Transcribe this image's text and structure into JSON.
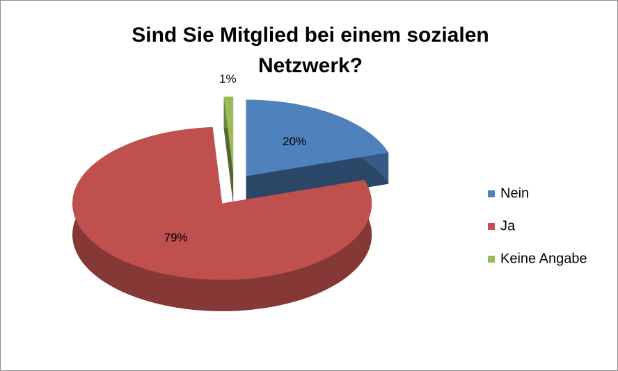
{
  "chart_data": {
    "type": "pie",
    "title": "Sind Sie Mitglied bei einem sozialen Netzwerk?",
    "categories": [
      "Nein",
      "Ja",
      "Keine Angabe"
    ],
    "values": [
      20,
      79,
      1
    ],
    "value_labels": [
      "20%",
      "79%",
      "1%"
    ],
    "colors": [
      "#4f81bd",
      "#c0504d",
      "#9bbb59"
    ],
    "legend": "right"
  }
}
